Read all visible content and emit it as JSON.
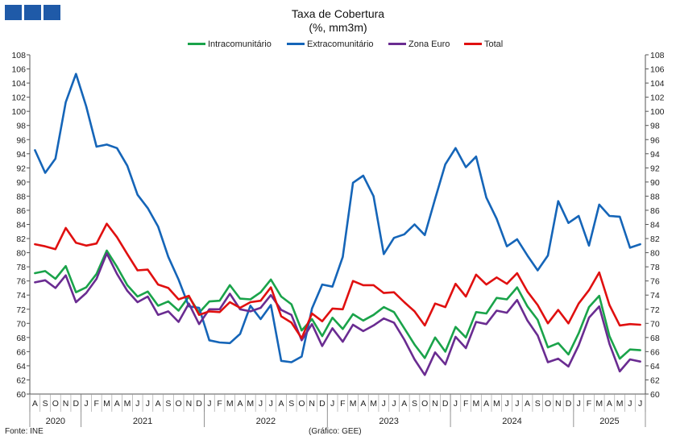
{
  "header": {
    "logo_blocks": 3
  },
  "chart_data": {
    "type": "line",
    "title": "Taxa de Cobertura",
    "subtitle": "(%, mm3m)",
    "ylim": [
      60,
      108
    ],
    "yticks": [
      60,
      62,
      64,
      66,
      68,
      70,
      72,
      74,
      76,
      78,
      80,
      82,
      84,
      86,
      88,
      90,
      92,
      94,
      96,
      98,
      100,
      102,
      104,
      106,
      108
    ],
    "y_axis_sides": "left and right",
    "grid": false,
    "legend_position": "top",
    "month_labels": [
      "A",
      "S",
      "O",
      "N",
      "D",
      "J",
      "F",
      "M",
      "A",
      "M",
      "J",
      "J",
      "A",
      "S",
      "O",
      "N",
      "D",
      "J",
      "F",
      "M",
      "A",
      "M",
      "J",
      "J",
      "A",
      "S",
      "O",
      "N",
      "D",
      "J",
      "F",
      "M",
      "A",
      "M",
      "J",
      "J",
      "A",
      "S",
      "O",
      "N",
      "D",
      "J",
      "F",
      "M",
      "A",
      "M",
      "J",
      "J",
      "A",
      "S",
      "O",
      "N",
      "D",
      "J",
      "F",
      "M",
      "A",
      "M",
      "J",
      "J"
    ],
    "year_labels": [
      {
        "label": "2020",
        "start": 0,
        "end": 5
      },
      {
        "label": "2021",
        "start": 5,
        "end": 17
      },
      {
        "label": "2022",
        "start": 17,
        "end": 29
      },
      {
        "label": "2023",
        "start": 29,
        "end": 41
      },
      {
        "label": "2024",
        "start": 41,
        "end": 53
      },
      {
        "label": "2025",
        "start": 53,
        "end": 60
      }
    ],
    "series": [
      {
        "name": "Intracomunitário",
        "color": "#1aa34a",
        "values": [
          77.1,
          77.4,
          76.3,
          78.1,
          74.4,
          75.1,
          77.0,
          80.3,
          78.0,
          75.4,
          73.8,
          74.5,
          72.5,
          73.1,
          71.8,
          73.8,
          71.5,
          73.1,
          73.2,
          75.4,
          73.5,
          73.4,
          74.4,
          76.2,
          73.8,
          72.7,
          69.0,
          70.6,
          68.2,
          70.8,
          69.2,
          71.3,
          70.4,
          71.2,
          72.3,
          71.6,
          69.3,
          67.0,
          65.1,
          68.0,
          66.0,
          69.5,
          68.0,
          71.6,
          71.4,
          73.6,
          73.4,
          75.1,
          72.4,
          70.5,
          66.6,
          67.2,
          65.6,
          68.6,
          72.3,
          73.9,
          68.2,
          65.0,
          66.3,
          66.2
        ]
      },
      {
        "name": "Extracomunitário",
        "color": "#1565b8",
        "values": [
          94.5,
          91.3,
          93.3,
          101.3,
          105.3,
          100.7,
          95.0,
          95.3,
          94.8,
          92.3,
          88.2,
          86.3,
          83.7,
          79.4,
          76.2,
          72.4,
          72.2,
          67.6,
          67.3,
          67.2,
          68.5,
          72.5,
          70.6,
          72.6,
          64.7,
          64.5,
          65.3,
          72.1,
          75.5,
          75.2,
          79.4,
          89.9,
          90.9,
          88.0,
          79.8,
          82.1,
          82.6,
          84.0,
          82.5,
          87.6,
          92.5,
          94.8,
          92.1,
          93.6,
          87.8,
          84.8,
          80.9,
          81.9,
          79.6,
          77.5,
          79.6,
          87.3,
          84.2,
          85.2,
          81.0,
          86.8,
          85.2,
          85.1,
          80.7,
          81.2
        ]
      },
      {
        "name": "Zona Euro",
        "color": "#6a2c91",
        "values": [
          75.8,
          76.1,
          75.0,
          76.8,
          73.0,
          74.3,
          76.3,
          79.9,
          77.0,
          74.6,
          73.0,
          73.8,
          71.2,
          71.7,
          70.2,
          72.8,
          69.9,
          72.0,
          72.0,
          74.2,
          72.0,
          71.7,
          72.2,
          74.0,
          71.9,
          71.2,
          67.6,
          69.9,
          66.8,
          69.3,
          67.4,
          69.8,
          68.9,
          69.7,
          70.7,
          70.1,
          67.7,
          64.9,
          62.7,
          65.9,
          64.2,
          68.1,
          66.5,
          70.2,
          69.9,
          71.8,
          71.5,
          73.3,
          70.4,
          68.3,
          64.5,
          65.0,
          63.9,
          66.9,
          70.8,
          72.4,
          67.1,
          63.2,
          64.9,
          64.6
        ]
      },
      {
        "name": "Total",
        "color": "#e01010",
        "values": [
          81.2,
          80.9,
          80.5,
          83.5,
          81.4,
          81.0,
          81.3,
          84.1,
          82.2,
          79.8,
          77.5,
          77.6,
          75.5,
          75.0,
          73.4,
          73.9,
          71.2,
          71.7,
          71.6,
          73.0,
          72.2,
          73.0,
          73.2,
          75.1,
          71.0,
          70.1,
          67.9,
          71.4,
          70.3,
          72.1,
          72.0,
          76.0,
          75.4,
          75.4,
          74.3,
          74.4,
          73.0,
          71.7,
          69.7,
          72.8,
          72.3,
          75.6,
          73.8,
          76.9,
          75.5,
          76.5,
          75.6,
          77.1,
          74.5,
          72.6,
          70.0,
          71.9,
          70.0,
          72.8,
          74.7,
          77.2,
          72.6,
          69.7,
          69.9,
          69.8
        ]
      }
    ]
  },
  "footer": {
    "source": "Fonte: INE",
    "credit": "(Gráfico: GEE)"
  }
}
